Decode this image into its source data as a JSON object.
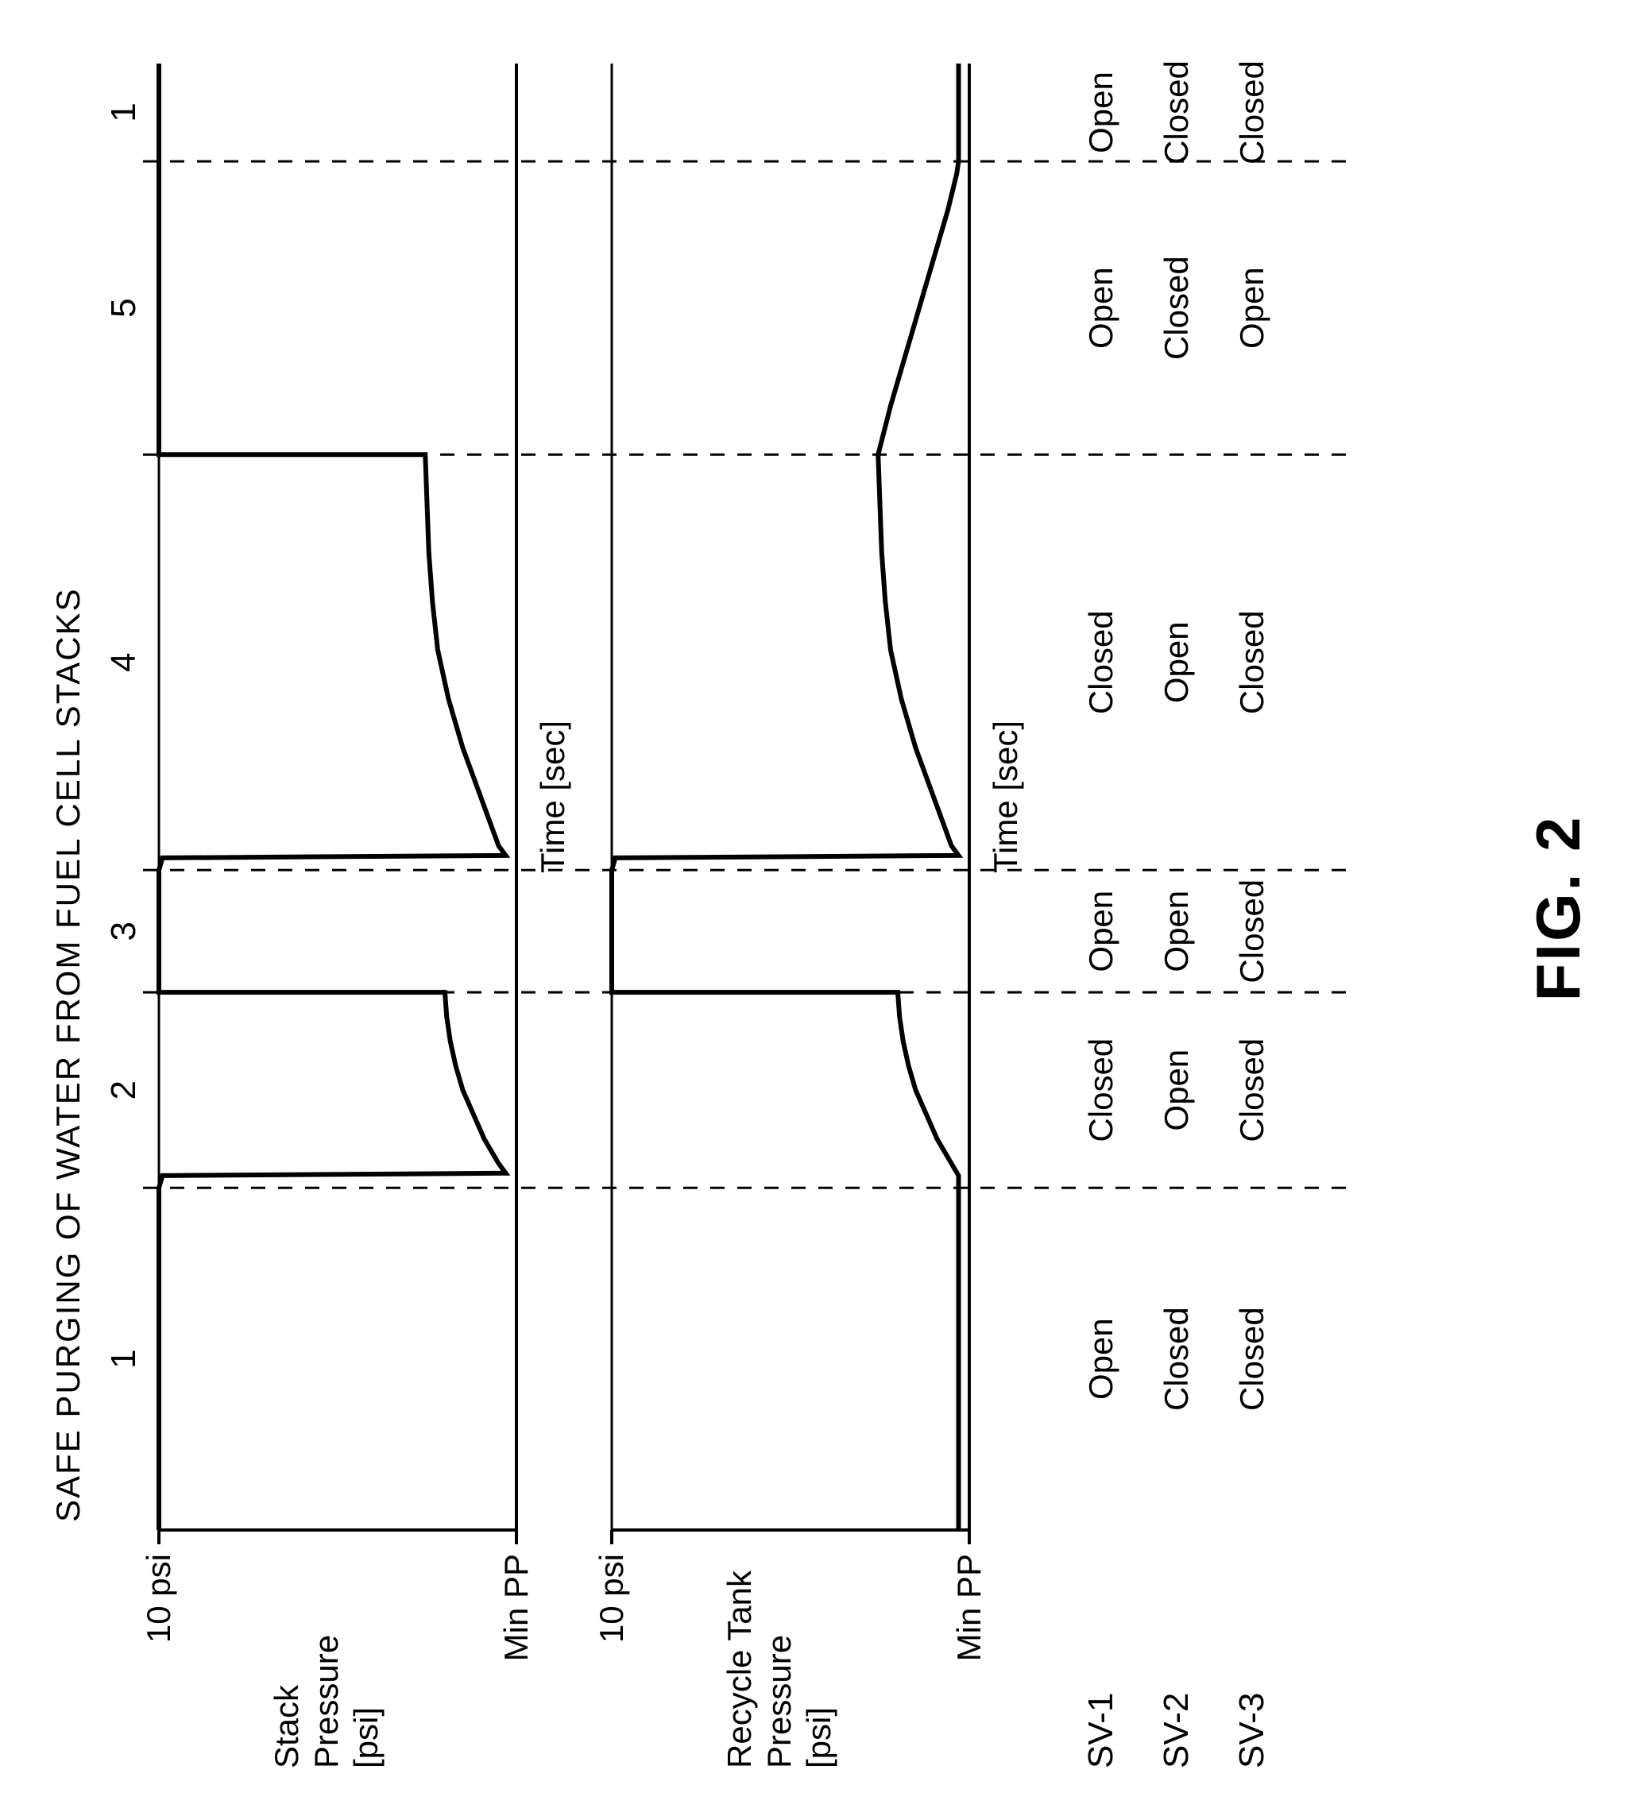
{
  "fig": {
    "title": "SAFE PURGING OF WATER FROM FUEL CELL STACKS",
    "figlabel": "FIG. 2",
    "colors": {
      "bg": "#ffffff",
      "line": "#000000",
      "dash": "#000000"
    },
    "font": {
      "family": "Arial",
      "axis_pt": 42,
      "title_pt": 42,
      "fig_pt": 78,
      "weight_title": "bold",
      "weight_fig": "900"
    },
    "rotation": -90,
    "xlim": [
      0,
      60
    ],
    "boundaries_sec": [
      14,
      22,
      27,
      44,
      56
    ],
    "phase_labels": [
      "1",
      "2",
      "3",
      "4",
      "5",
      "1"
    ],
    "chart1": {
      "ylabel1": "Stack",
      "ylabel2": "Pressure",
      "ylabel3": "[psi]",
      "ytop_label": "10 psi",
      "ybot_label": "Min PP",
      "xaxis_label": "Time [sec]",
      "line_width": 6
    },
    "chart2": {
      "ylabel1": "Recycle Tank",
      "ylabel2": "Pressure",
      "ylabel3": "[psi]",
      "ytop_label": "10 psi",
      "ybot_label": "Min PP",
      "xaxis_label": "Time [sec]",
      "line_width": 6
    },
    "chart1_curve": [
      [
        0,
        10
      ],
      [
        14,
        10
      ],
      [
        14.5,
        9.9
      ],
      [
        14.6,
        0.3
      ],
      [
        15,
        0.5
      ],
      [
        16,
        0.9
      ],
      [
        17,
        1.2
      ],
      [
        18,
        1.5
      ],
      [
        19,
        1.7
      ],
      [
        20,
        1.85
      ],
      [
        21,
        1.95
      ],
      [
        22,
        2.0
      ],
      [
        22,
        10
      ],
      [
        27,
        10
      ],
      [
        27.5,
        9.9
      ],
      [
        27.6,
        0.3
      ],
      [
        28,
        0.5
      ],
      [
        30,
        1.0
      ],
      [
        32,
        1.5
      ],
      [
        34,
        1.9
      ],
      [
        36,
        2.2
      ],
      [
        38,
        2.35
      ],
      [
        40,
        2.45
      ],
      [
        42,
        2.5
      ],
      [
        44,
        2.55
      ],
      [
        44,
        10
      ],
      [
        60,
        10
      ]
    ],
    "chart2_curve": [
      [
        0,
        0.3
      ],
      [
        14.5,
        0.3
      ],
      [
        15,
        0.5
      ],
      [
        16,
        0.9
      ],
      [
        17,
        1.2
      ],
      [
        18,
        1.5
      ],
      [
        19,
        1.7
      ],
      [
        20,
        1.85
      ],
      [
        21,
        1.95
      ],
      [
        22,
        2.0
      ],
      [
        22,
        10
      ],
      [
        27,
        10
      ],
      [
        27.5,
        9.9
      ],
      [
        27.6,
        0.3
      ],
      [
        28,
        0.5
      ],
      [
        30,
        1.0
      ],
      [
        32,
        1.5
      ],
      [
        34,
        1.9
      ],
      [
        36,
        2.2
      ],
      [
        38,
        2.35
      ],
      [
        40,
        2.45
      ],
      [
        42,
        2.5
      ],
      [
        44,
        2.55
      ],
      [
        46,
        2.2
      ],
      [
        48,
        1.8
      ],
      [
        50,
        1.4
      ],
      [
        52,
        1.0
      ],
      [
        54,
        0.6
      ],
      [
        55.5,
        0.35
      ],
      [
        56,
        0.3
      ],
      [
        60,
        0.3
      ]
    ],
    "table": {
      "rows": [
        "SV-1",
        "SV-2",
        "SV-3"
      ],
      "cells": [
        [
          "Open",
          "Closed",
          "Open",
          "Closed",
          "Open",
          "Open"
        ],
        [
          "Closed",
          "Open",
          "Open",
          "Open",
          "Closed",
          "Closed"
        ],
        [
          "Closed",
          "Closed",
          "Closed",
          "Closed",
          "Open",
          "Closed"
        ]
      ]
    }
  }
}
